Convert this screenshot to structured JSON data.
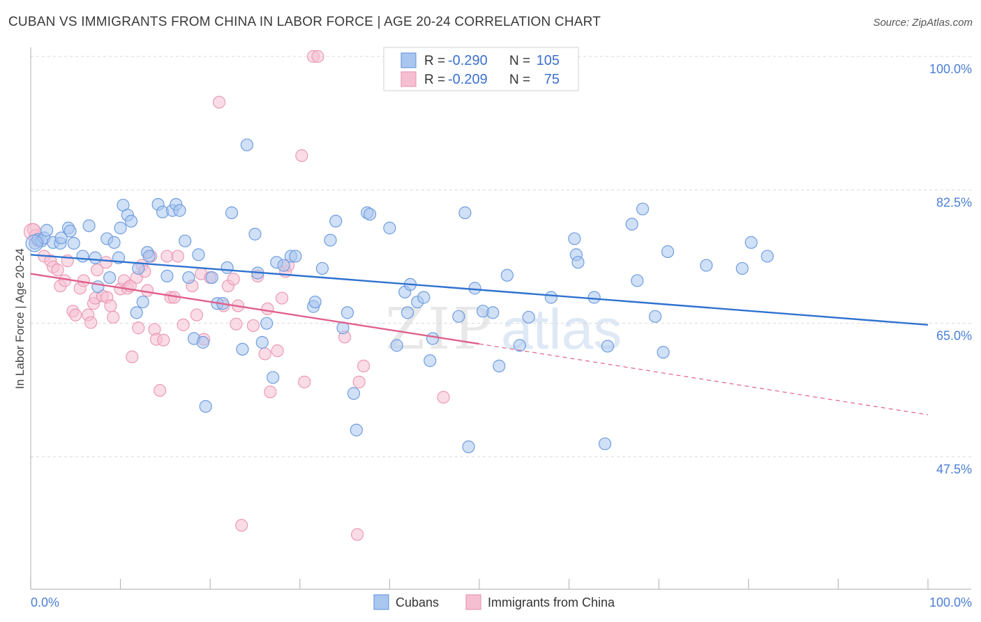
{
  "title": "CUBAN VS IMMIGRANTS FROM CHINA IN LABOR FORCE | AGE 20-24 CORRELATION CHART",
  "source": "Source: ZipAtlas.com",
  "watermark": "ZIPatlas",
  "colors": {
    "cubans_fill": "#a9c6ef",
    "cubans_stroke": "#6f9ddf",
    "cubans_line": "#2f72d0",
    "china_fill": "#f6bfd1",
    "china_stroke": "#ea9ab6",
    "china_line": "#e0608c",
    "tick_label": "#4a7fd4",
    "grid": "#d8d8d8"
  },
  "legend": {
    "rows": [
      {
        "r_label": "R =",
        "r_value": "-0.290",
        "n_label": "N =",
        "n_value": "105"
      },
      {
        "r_label": "R =",
        "r_value": "-0.209",
        "n_label": "N =",
        "n_value": "75"
      }
    ]
  },
  "chart_data": {
    "type": "scatter",
    "xlabel": "",
    "ylabel": "In Labor Force | Age 20-24",
    "xlim": [
      0,
      100
    ],
    "ylim": [
      32,
      102
    ],
    "x_tick_labels": [
      "0.0%",
      "100.0%"
    ],
    "y_ticks": [
      47.5,
      65.0,
      82.5,
      100.0
    ],
    "y_tick_labels": [
      "47.5%",
      "65.0%",
      "82.5%",
      "100.0%"
    ],
    "grid": "horizontal dashed",
    "legend_position": "top-center",
    "series": [
      {
        "name": "Cubans",
        "trend": {
          "x0": 0,
          "y0": 74.0,
          "x1": 100,
          "y1": 64.8,
          "dashed_from": 100
        },
        "points": [
          [
            0.5,
            75.5
          ],
          [
            0.8,
            76.0
          ],
          [
            1.2,
            75.8
          ],
          [
            1.5,
            76.2
          ],
          [
            1.8,
            77.2
          ],
          [
            2.5,
            75.6
          ],
          [
            3.3,
            75.5
          ],
          [
            3.4,
            76.2
          ],
          [
            4.2,
            77.5
          ],
          [
            4.4,
            77.1
          ],
          [
            4.8,
            75.5
          ],
          [
            5.8,
            73.8
          ],
          [
            6.5,
            77.8
          ],
          [
            7.2,
            73.6
          ],
          [
            7.5,
            69.8
          ],
          [
            8.5,
            76.1
          ],
          [
            8.8,
            71.0
          ],
          [
            9.3,
            75.6
          ],
          [
            9.8,
            73.6
          ],
          [
            10.0,
            77.5
          ],
          [
            10.3,
            80.5
          ],
          [
            10.8,
            79.2
          ],
          [
            11.2,
            78.4
          ],
          [
            11.8,
            66.4
          ],
          [
            12.0,
            72.2
          ],
          [
            12.5,
            67.8
          ],
          [
            13.0,
            74.3
          ],
          [
            13.2,
            73.8
          ],
          [
            14.2,
            80.6
          ],
          [
            14.7,
            79.6
          ],
          [
            15.2,
            71.2
          ],
          [
            15.8,
            79.8
          ],
          [
            16.2,
            80.6
          ],
          [
            16.6,
            79.8
          ],
          [
            17.2,
            75.8
          ],
          [
            17.6,
            71.0
          ],
          [
            18.2,
            63.0
          ],
          [
            18.7,
            74.0
          ],
          [
            19.2,
            62.5
          ],
          [
            19.5,
            54.1
          ],
          [
            20.2,
            71.0
          ],
          [
            20.8,
            67.6
          ],
          [
            21.4,
            67.6
          ],
          [
            21.9,
            72.3
          ],
          [
            22.4,
            79.5
          ],
          [
            23.6,
            61.6
          ],
          [
            24.1,
            88.4
          ],
          [
            25.0,
            76.7
          ],
          [
            25.3,
            71.6
          ],
          [
            25.8,
            62.5
          ],
          [
            26.3,
            65.0
          ],
          [
            27.0,
            57.9
          ],
          [
            27.4,
            73.0
          ],
          [
            28.2,
            72.6
          ],
          [
            29.0,
            73.8
          ],
          [
            29.5,
            73.8
          ],
          [
            31.5,
            67.2
          ],
          [
            31.7,
            67.8
          ],
          [
            32.5,
            72.2
          ],
          [
            33.4,
            75.9
          ],
          [
            34.0,
            78.4
          ],
          [
            34.8,
            64.4
          ],
          [
            35.3,
            66.4
          ],
          [
            36.0,
            55.8
          ],
          [
            36.3,
            51.0
          ],
          [
            37.5,
            79.5
          ],
          [
            37.8,
            79.3
          ],
          [
            40.0,
            77.5
          ],
          [
            40.8,
            62.1
          ],
          [
            41.7,
            69.1
          ],
          [
            42.0,
            66.4
          ],
          [
            42.3,
            70.1
          ],
          [
            43.1,
            67.8
          ],
          [
            43.8,
            68.4
          ],
          [
            44.5,
            60.1
          ],
          [
            44.8,
            63.0
          ],
          [
            47.7,
            65.9
          ],
          [
            48.4,
            79.5
          ],
          [
            48.8,
            48.8
          ],
          [
            49.5,
            69.6
          ],
          [
            50.4,
            66.6
          ],
          [
            51.5,
            66.4
          ],
          [
            52.2,
            59.4
          ],
          [
            53.1,
            71.3
          ],
          [
            54.5,
            62.1
          ],
          [
            55.5,
            65.8
          ],
          [
            58.0,
            68.4
          ],
          [
            60.6,
            76.1
          ],
          [
            60.8,
            74.0
          ],
          [
            61.0,
            73.0
          ],
          [
            62.8,
            68.4
          ],
          [
            64.0,
            49.2
          ],
          [
            64.3,
            62.0
          ],
          [
            67.0,
            78.0
          ],
          [
            67.6,
            70.6
          ],
          [
            68.2,
            80.0
          ],
          [
            69.6,
            65.9
          ],
          [
            70.5,
            61.2
          ],
          [
            71.0,
            74.4
          ],
          [
            75.3,
            72.6
          ],
          [
            79.3,
            72.2
          ],
          [
            80.3,
            75.6
          ],
          [
            82.1,
            73.8
          ]
        ]
      },
      {
        "name": "Immigrants from China",
        "trend": {
          "x0": 0,
          "y0": 71.5,
          "x1": 50,
          "y1": 62.3,
          "dashed_from": 50,
          "x2": 100,
          "y2": 53.0
        },
        "points": [
          [
            0.3,
            77.3
          ],
          [
            0.5,
            76.5
          ],
          [
            0.8,
            75.8
          ],
          [
            1.5,
            73.8
          ],
          [
            2.2,
            73.2
          ],
          [
            2.5,
            72.4
          ],
          [
            3.0,
            72.0
          ],
          [
            3.3,
            69.9
          ],
          [
            3.8,
            70.6
          ],
          [
            4.1,
            73.2
          ],
          [
            4.7,
            66.6
          ],
          [
            5.0,
            66.1
          ],
          [
            5.5,
            69.6
          ],
          [
            5.9,
            70.6
          ],
          [
            6.4,
            66.1
          ],
          [
            6.7,
            65.1
          ],
          [
            7.0,
            67.6
          ],
          [
            7.2,
            68.3
          ],
          [
            7.4,
            72.0
          ],
          [
            8.0,
            68.6
          ],
          [
            8.4,
            73.0
          ],
          [
            8.5,
            68.4
          ],
          [
            8.9,
            67.3
          ],
          [
            9.2,
            65.8
          ],
          [
            10.0,
            69.5
          ],
          [
            10.4,
            70.6
          ],
          [
            10.8,
            69.6
          ],
          [
            11.1,
            69.9
          ],
          [
            11.3,
            60.6
          ],
          [
            11.8,
            71.0
          ],
          [
            12.0,
            64.4
          ],
          [
            12.4,
            72.6
          ],
          [
            12.7,
            71.8
          ],
          [
            13.0,
            69.3
          ],
          [
            13.4,
            73.8
          ],
          [
            13.8,
            64.2
          ],
          [
            14.0,
            62.9
          ],
          [
            14.4,
            56.2
          ],
          [
            14.8,
            62.8
          ],
          [
            15.2,
            73.8
          ],
          [
            15.6,
            68.4
          ],
          [
            16.0,
            68.4
          ],
          [
            16.4,
            73.8
          ],
          [
            17.0,
            64.8
          ],
          [
            18.0,
            69.9
          ],
          [
            18.5,
            66.1
          ],
          [
            19.0,
            71.5
          ],
          [
            19.3,
            62.9
          ],
          [
            20.0,
            71.0
          ],
          [
            21.0,
            94.0
          ],
          [
            21.5,
            67.3
          ],
          [
            22.0,
            69.9
          ],
          [
            22.6,
            70.8
          ],
          [
            22.9,
            64.9
          ],
          [
            23.1,
            67.3
          ],
          [
            23.5,
            38.5
          ],
          [
            24.8,
            64.7
          ],
          [
            25.3,
            71.2
          ],
          [
            26.1,
            61.0
          ],
          [
            26.4,
            66.9
          ],
          [
            26.7,
            56.0
          ],
          [
            27.5,
            61.4
          ],
          [
            28.0,
            68.3
          ],
          [
            28.4,
            71.8
          ],
          [
            28.7,
            72.6
          ],
          [
            30.2,
            87.0
          ],
          [
            30.5,
            57.3
          ],
          [
            31.5,
            100.0
          ],
          [
            32.0,
            100.0
          ],
          [
            35.0,
            63.2
          ],
          [
            36.4,
            37.3
          ],
          [
            36.6,
            57.3
          ],
          [
            37.1,
            59.4
          ],
          [
            46.0,
            55.3
          ]
        ]
      }
    ]
  }
}
